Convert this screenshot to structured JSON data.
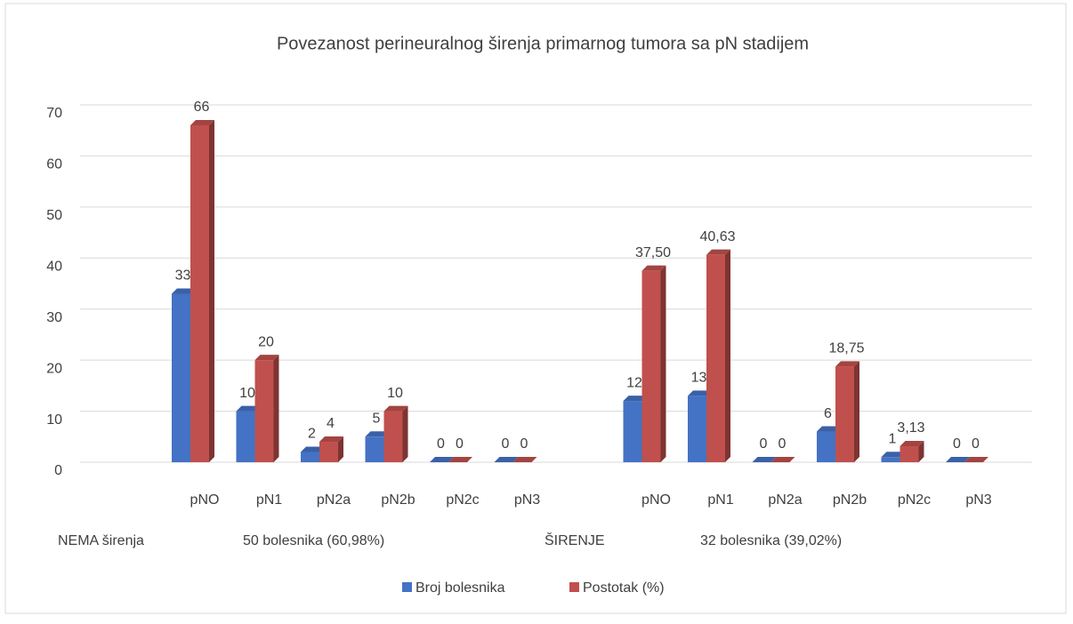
{
  "chart_data": {
    "type": "bar3d",
    "title": "Povezanost perineuralnog širenja primarnog tumora sa pN stadijem",
    "categories": [
      null,
      "pNO",
      "pN1",
      "pN2a",
      "pN2b",
      "pN2c",
      "pN3",
      null,
      "pNO",
      "pN1",
      "pN2a",
      "pN2b",
      "pN2c",
      "pN3"
    ],
    "group_labels": [
      "NEMA širenja",
      "50 bolesnika (60,98%)",
      "ŠIRENJE",
      "32 bolesnika (39,02%)"
    ],
    "series": [
      {
        "name": "Broj bolesnika",
        "color": "#4472c4",
        "values": [
          null,
          33,
          10,
          2,
          5,
          0,
          0,
          null,
          12,
          13,
          0,
          6,
          1,
          0
        ]
      },
      {
        "name": "Postotak (%)",
        "color": "#c0504d",
        "values": [
          null,
          66,
          20,
          4,
          10,
          0,
          0,
          null,
          37.5,
          40.63,
          0,
          18.75,
          3.13,
          0
        ],
        "value_labels": [
          null,
          "66",
          "20",
          "4",
          "10",
          "0",
          "0",
          null,
          "37,50",
          "40,63",
          "0",
          "18,75",
          "3,13",
          "0"
        ]
      }
    ],
    "ylim": [
      0,
      70
    ],
    "yticks": [
      0,
      10,
      20,
      30,
      40,
      50,
      60,
      70
    ],
    "grid": true,
    "legend": "bottom"
  }
}
